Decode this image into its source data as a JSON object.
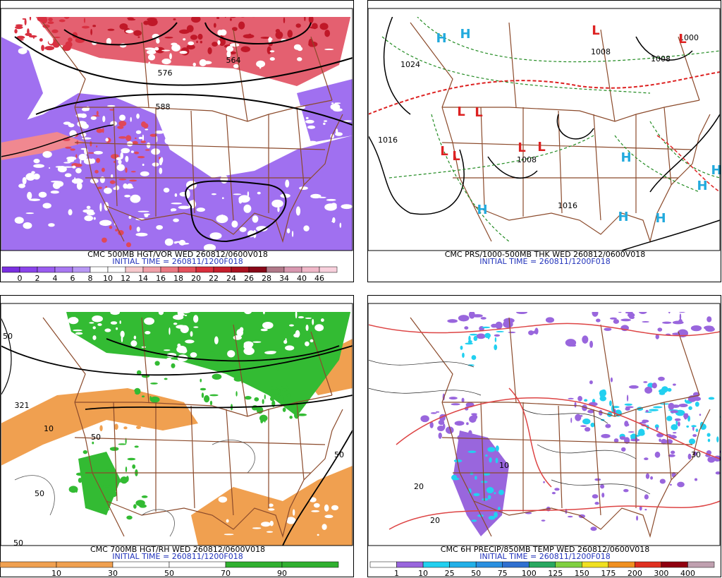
{
  "panels": [
    {
      "title": "CMC 500MB HGT/VOR WED 260812/0600V018",
      "init": "INITIAL TIME = 260811/1200F018",
      "colorbar": {
        "labels": [
          "0",
          "2",
          "4",
          "6",
          "8",
          "10",
          "12",
          "14",
          "16",
          "18",
          "20",
          "22",
          "24",
          "26",
          "28",
          "34",
          "40",
          "46"
        ],
        "colors": [
          "#7a2fe0",
          "#8a44ea",
          "#9a5cf0",
          "#a878f2",
          "#b898f4",
          "#ffffff",
          "#ffffff",
          "#f6c8cc",
          "#f0a0a8",
          "#ea7882",
          "#e4505c",
          "#d82e3c",
          "#c41e2c",
          "#a81020",
          "#880818",
          "#b07888",
          "#d898b0",
          "#f0b8c8",
          "#f8d0dc"
        ]
      },
      "contour_labels": [
        "564",
        "576",
        "588"
      ]
    },
    {
      "title": "CMC PRS/1000-500MB THK WED 260812/0600V018",
      "init": "INITIAL TIME = 260811/1200F018",
      "contour_labels": [
        "1024",
        "1016",
        "1008",
        "1008",
        "1000",
        "1008",
        "1016"
      ],
      "symbols": [
        "H",
        "H",
        "L",
        "L",
        "L",
        "L",
        "L",
        "L",
        "L",
        "L",
        "H",
        "H",
        "H",
        "H",
        "H",
        "H"
      ]
    },
    {
      "title": "CMC 700MB HGT/RH WED 260812/0600V018",
      "init": "INITIAL TIME = 260811/1200F018",
      "colorbar": {
        "labels": [
          "10",
          "30",
          "50",
          "70",
          "90"
        ],
        "colors": [
          "#f0a050",
          "#f0a050",
          "#ffffff",
          "#ffffff",
          "#30b030",
          "#30b030"
        ]
      },
      "contour_labels": [
        "50",
        "50",
        "50",
        "50",
        "50",
        "321",
        "10"
      ]
    },
    {
      "title": "CMC 6H PRECIP/850MB TEMP WED 260812/0600V018",
      "init": "INITIAL TIME = 260811/1200F018",
      "colorbar": {
        "labels": [
          "1",
          "10",
          "25",
          "50",
          "75",
          "100",
          "125",
          "150",
          "175",
          "200",
          "300",
          "400"
        ],
        "colors": [
          "#ffffff",
          "#9966dd",
          "#22d0f0",
          "#22b0e8",
          "#2a90e0",
          "#3070d0",
          "#28a860",
          "#80d040",
          "#f0e020",
          "#f09020",
          "#e03020",
          "#900010",
          "#c0a0b0"
        ]
      },
      "contour_labels": [
        "30",
        "20",
        "20",
        "10"
      ]
    }
  ]
}
